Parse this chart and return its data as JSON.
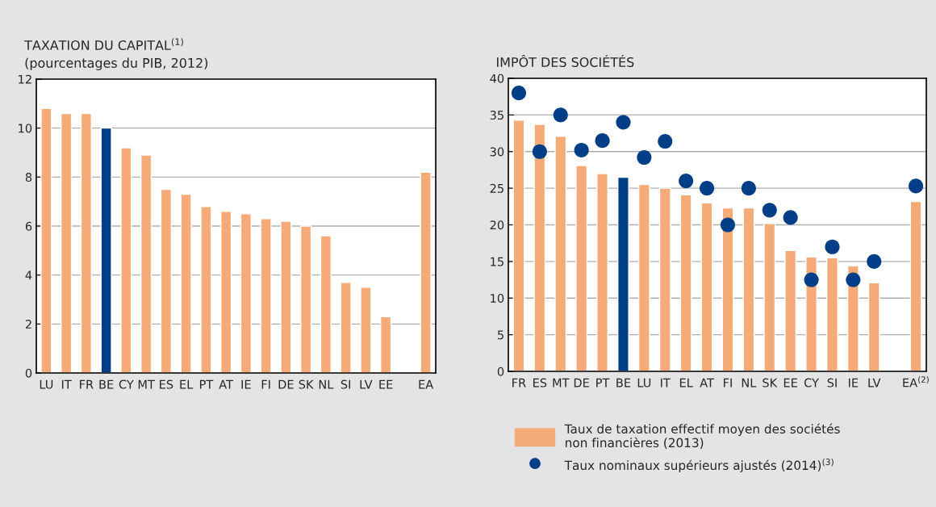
{
  "chart_data": [
    {
      "type": "bar",
      "title": "TAXATION DU CAPITAL$^{(1)}$",
      "subtitle": "(pourcentages du PIB, 2012)",
      "categories": [
        "LU",
        "IT",
        "FR",
        "BE",
        "CY",
        "MT",
        "ES",
        "EL",
        "PT",
        "AT",
        "IE",
        "FI",
        "DE",
        "SK",
        "NL",
        "SI",
        "LV",
        "EE",
        null,
        "EA"
      ],
      "series": [
        {
          "color": "#f5ab78",
          "colors": [
            "#f5ab78",
            "#f5ab78",
            "#f5ab78",
            "#003f87",
            "#f5ab78",
            "#f5ab78",
            "#f5ab78",
            "#f5ab78",
            "#f5ab78",
            "#f5ab78",
            "#f5ab78",
            "#f5ab78",
            "#f5ab78",
            "#f5ab78",
            "#f5ab78",
            "#f5ab78",
            "#f5ab78",
            "#f5ab78",
            "#f5ab78",
            "#f5ab78"
          ],
          "values": [
            10.8,
            10.6,
            10.6,
            10.0,
            9.2,
            8.9,
            7.5,
            7.3,
            6.8,
            6.6,
            6.5,
            6.3,
            6.2,
            6.0,
            5.6,
            3.7,
            3.5,
            2.3,
            null,
            8.2
          ]
        }
      ],
      "ylim": [
        0,
        12
      ],
      "yticks": [
        0,
        2,
        4,
        6,
        8,
        10,
        12
      ],
      "grid": "y",
      "legend": false
    },
    {
      "type": "bar",
      "title": "IMPÔT DES SOCIÉTÉS",
      "categories": [
        "FR",
        "ES",
        "MT",
        "DE",
        "PT",
        "BE",
        "LU",
        "IT",
        "EL",
        "AT",
        "FI",
        "NL",
        "SK",
        "EE",
        "CY",
        "SI",
        "IE",
        "LV",
        null,
        "EA$^{(2)}$"
      ],
      "series": [
        {
          "type": "bar",
          "name": "Taux de taxation effectif moyen des sociétés\nnon financières (2013)",
          "color": "#f5ab78",
          "colors": [
            "#f5ab78",
            "#f5ab78",
            "#f5ab78",
            "#f5ab78",
            "#f5ab78",
            "#003f87",
            "#f5ab78",
            "#f5ab78",
            "#f5ab78",
            "#f5ab78",
            "#f5ab78",
            "#f5ab78",
            "#f5ab78",
            "#f5ab78",
            "#f5ab78",
            "#f5ab78",
            "#f5ab78",
            "#f5ab78",
            "#f5ab78",
            "#f5ab78"
          ],
          "values": [
            34.3,
            33.7,
            32.1,
            28.1,
            27.0,
            26.5,
            25.5,
            25.0,
            24.1,
            23.0,
            22.3,
            22.3,
            20.2,
            16.5,
            15.6,
            15.5,
            14.4,
            12.1,
            null,
            23.2
          ]
        },
        {
          "type": "scatter",
          "name": "Taux nominaux supérieurs ajustés (2014)$^{(3)}$",
          "color": "#003f87",
          "marker": "circle",
          "values": [
            38.0,
            30.0,
            35.0,
            30.2,
            31.5,
            34.0,
            29.2,
            31.4,
            26.0,
            25.0,
            20.0,
            25.0,
            22.0,
            21.0,
            12.5,
            17.0,
            12.5,
            15.0,
            null,
            25.3
          ]
        }
      ],
      "ylim": [
        0,
        40
      ],
      "yticks": [
        0,
        5,
        10,
        15,
        20,
        25,
        30,
        35,
        40
      ],
      "grid": "y",
      "legend": "bottom"
    }
  ]
}
